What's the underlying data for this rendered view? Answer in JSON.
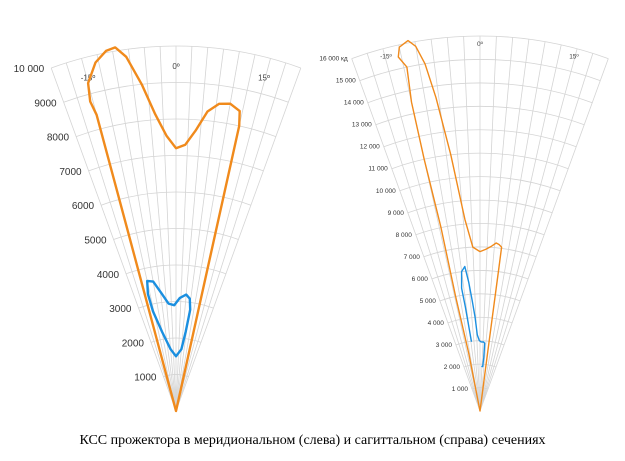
{
  "caption": "КСС прожектора в меридиональном (слева) и сагиттальном (справа) сечениях",
  "colors": {
    "grid": "#d4d4d4",
    "orange": "#f08a1c",
    "blue": "#1a8fe0"
  },
  "chart_data": [
    {
      "type": "polar",
      "title": "",
      "angle_range_deg": [
        -20,
        20
      ],
      "angle_grid_step_deg": 2.5,
      "angle_labels": [
        {
          "deg": -15,
          "text": "-15º"
        },
        {
          "deg": 0,
          "text": "0º"
        },
        {
          "deg": 15,
          "text": "15º"
        }
      ],
      "rlim": [
        0,
        10000
      ],
      "r_ticks": [
        {
          "value": 1000,
          "text": "1000"
        },
        {
          "value": 2000,
          "text": "2000"
        },
        {
          "value": 3000,
          "text": "3000"
        },
        {
          "value": 4000,
          "text": "4000"
        },
        {
          "value": 5000,
          "text": "5000"
        },
        {
          "value": 6000,
          "text": "6000"
        },
        {
          "value": 7000,
          "text": "7000"
        },
        {
          "value": 8000,
          "text": "8000"
        },
        {
          "value": 9000,
          "text": "9000"
        },
        {
          "value": 10000,
          "text": "10 000"
        }
      ],
      "series": [
        {
          "color": "orange",
          "points": [
            [
              -15,
              8400
            ],
            [
              -15.5,
              8800
            ],
            [
              -15,
              9300
            ],
            [
              -13,
              9800
            ],
            [
              -11,
              10050
            ],
            [
              -9.5,
              10100
            ],
            [
              -8,
              9800
            ],
            [
              -6,
              9000
            ],
            [
              -4,
              8150
            ],
            [
              -2,
              7550
            ],
            [
              0,
              7200
            ],
            [
              2,
              7300
            ],
            [
              4,
              7700
            ],
            [
              6,
              8250
            ],
            [
              8,
              8500
            ],
            [
              10,
              8550
            ],
            [
              12,
              8400
            ],
            [
              12.5,
              8000
            ],
            [
              12.5,
              7000
            ],
            [
              12.5,
              5000
            ],
            [
              12.5,
              3000
            ],
            [
              12.5,
              1500
            ],
            [
              10,
              0
            ],
            [
              -10,
              0
            ],
            [
              -15,
              2000
            ],
            [
              -15,
              4500
            ],
            [
              -15,
              6500
            ],
            [
              -15,
              8400
            ]
          ]
        },
        {
          "color": "blue",
          "points": [
            [
              -13,
              2800
            ],
            [
              -13.5,
              3300
            ],
            [
              -12.5,
              3650
            ],
            [
              -10,
              3600
            ],
            [
              -7,
              3250
            ],
            [
              -4,
              2950
            ],
            [
              -1,
              2900
            ],
            [
              2,
              3100
            ],
            [
              5,
              3200
            ],
            [
              7,
              3100
            ],
            [
              8,
              2800
            ],
            [
              7,
              2200
            ],
            [
              5,
              1700
            ],
            [
              0,
              1500
            ],
            [
              -5,
              1700
            ],
            [
              -10,
              2200
            ],
            [
              -13,
              2800
            ]
          ]
        }
      ]
    },
    {
      "type": "polar",
      "title": "",
      "angle_range_deg": [
        -20,
        20
      ],
      "angle_grid_step_deg": 2.5,
      "angle_labels": [
        {
          "deg": -15,
          "text": "-15º"
        },
        {
          "deg": 0,
          "text": "0º"
        },
        {
          "deg": 15,
          "text": "15º"
        }
      ],
      "rlim": [
        0,
        16000
      ],
      "r_ticks": [
        {
          "value": 1000,
          "text": "1 000"
        },
        {
          "value": 2000,
          "text": "2 000"
        },
        {
          "value": 3000,
          "text": "3 000"
        },
        {
          "value": 4000,
          "text": "4 000"
        },
        {
          "value": 5000,
          "text": "5 000"
        },
        {
          "value": 6000,
          "text": "6 000"
        },
        {
          "value": 7000,
          "text": "7 000"
        },
        {
          "value": 8000,
          "text": "8 000"
        },
        {
          "value": 9000,
          "text": "9 000"
        },
        {
          "value": 10000,
          "text": "10 000"
        },
        {
          "value": 11000,
          "text": "11 000"
        },
        {
          "value": 12000,
          "text": "12 000"
        },
        {
          "value": 13000,
          "text": "13 000"
        },
        {
          "value": 14000,
          "text": "14 000"
        },
        {
          "value": 15000,
          "text": "15 000"
        },
        {
          "value": 16000,
          "text": "16 000 кд"
        }
      ],
      "series": [
        {
          "color": "orange",
          "points": [
            [
              -12,
              15000
            ],
            [
              -13,
              15500
            ],
            [
              -12.5,
              15900
            ],
            [
              -11,
              16100
            ],
            [
              -10,
              15800
            ],
            [
              -9,
              15000
            ],
            [
              -8,
              13500
            ],
            [
              -6.5,
              11000
            ],
            [
              -4.5,
              8200
            ],
            [
              -2.5,
              7000
            ],
            [
              0,
              6800
            ],
            [
              2,
              6900
            ],
            [
              4,
              7050
            ],
            [
              5.5,
              7200
            ],
            [
              6.5,
              7150
            ],
            [
              7.5,
              7050
            ],
            [
              7.5,
              6000
            ],
            [
              7.5,
              4000
            ],
            [
              7.5,
              2500
            ],
            [
              5,
              0
            ],
            [
              -5,
              0
            ],
            [
              -11,
              2500
            ],
            [
              -12,
              5000
            ],
            [
              -12,
              8000
            ],
            [
              -12.5,
              11000
            ],
            [
              -12.5,
              13500
            ],
            [
              -12,
              15000
            ]
          ]
        },
        {
          "color": "blue",
          "points": [
            [
              -7,
              3000
            ],
            [
              -8,
              4500
            ],
            [
              -8.5,
              5300
            ],
            [
              -7.5,
              6000
            ],
            [
              -6,
              6200
            ],
            [
              -5,
              5500
            ],
            [
              -4,
              4700
            ],
            [
              -3,
              4000
            ],
            [
              -2,
              3250
            ],
            [
              -0.5,
              3000
            ],
            [
              1,
              2950
            ],
            [
              3,
              2950
            ],
            [
              4,
              2900
            ],
            [
              4,
              2300
            ],
            [
              3.5,
              1900
            ],
            [
              2.5,
              1900
            ]
          ]
        }
      ]
    }
  ]
}
